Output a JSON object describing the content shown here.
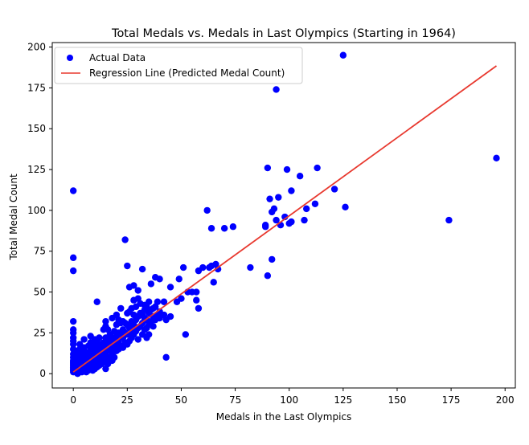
{
  "chart_data": {
    "type": "scatter",
    "title": "Total Medals vs. Medals in Last Olympics (Starting in 1964)",
    "xlabel": "Medals in the Last Olympics",
    "ylabel": "Total Medal Count",
    "xlim": [
      -9.75,
      204.75
    ],
    "ylim": [
      -8.75,
      202.75
    ],
    "xticks": [
      0,
      25,
      50,
      75,
      100,
      125,
      150,
      175,
      200
    ],
    "yticks": [
      0,
      25,
      50,
      75,
      100,
      125,
      150,
      175,
      200
    ],
    "grid": false,
    "legend_position": "upper-left",
    "legend": [
      {
        "label": "Actual Data",
        "kind": "marker",
        "color": "#0000ff"
      },
      {
        "label": "Regression Line (Predicted Medal Count)",
        "kind": "line",
        "color": "#e8392f"
      }
    ],
    "series": [
      {
        "name": "Actual Data",
        "type": "scatter",
        "color": "#0000ff",
        "points": [
          [
            0,
            1
          ],
          [
            0,
            2
          ],
          [
            0,
            3
          ],
          [
            0,
            4
          ],
          [
            0,
            5
          ],
          [
            0,
            6
          ],
          [
            0,
            7
          ],
          [
            0,
            8
          ],
          [
            0,
            10
          ],
          [
            0,
            12
          ],
          [
            0,
            15
          ],
          [
            0,
            18
          ],
          [
            0,
            20
          ],
          [
            0,
            22
          ],
          [
            0,
            25
          ],
          [
            0,
            27
          ],
          [
            0,
            32
          ],
          [
            0,
            63
          ],
          [
            0,
            71
          ],
          [
            0,
            112
          ],
          [
            1,
            1
          ],
          [
            1,
            2
          ],
          [
            1,
            3
          ],
          [
            1,
            5
          ],
          [
            1,
            8
          ],
          [
            1,
            10
          ],
          [
            1,
            13
          ],
          [
            2,
            0
          ],
          [
            2,
            2
          ],
          [
            2,
            4
          ],
          [
            2,
            6
          ],
          [
            2,
            9
          ],
          [
            2,
            12
          ],
          [
            2,
            14
          ],
          [
            3,
            1
          ],
          [
            3,
            3
          ],
          [
            3,
            5
          ],
          [
            3,
            7
          ],
          [
            3,
            10
          ],
          [
            3,
            15
          ],
          [
            3,
            18
          ],
          [
            4,
            1
          ],
          [
            4,
            4
          ],
          [
            4,
            6
          ],
          [
            4,
            8
          ],
          [
            4,
            11
          ],
          [
            4,
            14
          ],
          [
            5,
            2
          ],
          [
            5,
            3
          ],
          [
            5,
            5
          ],
          [
            5,
            7
          ],
          [
            5,
            9
          ],
          [
            5,
            12
          ],
          [
            5,
            16
          ],
          [
            5,
            21
          ],
          [
            6,
            1
          ],
          [
            6,
            4
          ],
          [
            6,
            6
          ],
          [
            6,
            8
          ],
          [
            6,
            10
          ],
          [
            6,
            13
          ],
          [
            7,
            2
          ],
          [
            7,
            5
          ],
          [
            7,
            7
          ],
          [
            7,
            9
          ],
          [
            7,
            12
          ],
          [
            7,
            17
          ],
          [
            8,
            3
          ],
          [
            8,
            5
          ],
          [
            8,
            8
          ],
          [
            8,
            11
          ],
          [
            8,
            14
          ],
          [
            8,
            19
          ],
          [
            8,
            23
          ],
          [
            9,
            2
          ],
          [
            9,
            6
          ],
          [
            9,
            9
          ],
          [
            9,
            12
          ],
          [
            9,
            16
          ],
          [
            10,
            3
          ],
          [
            10,
            6
          ],
          [
            10,
            9
          ],
          [
            10,
            11
          ],
          [
            10,
            14
          ],
          [
            10,
            18
          ],
          [
            10,
            21
          ],
          [
            11,
            4
          ],
          [
            11,
            8
          ],
          [
            11,
            44
          ],
          [
            11,
            12
          ],
          [
            11,
            15
          ],
          [
            11,
            20
          ],
          [
            12,
            5
          ],
          [
            12,
            9
          ],
          [
            12,
            13
          ],
          [
            12,
            17
          ],
          [
            12,
            22
          ],
          [
            13,
            6
          ],
          [
            13,
            10
          ],
          [
            13,
            14
          ],
          [
            13,
            18
          ],
          [
            14,
            7
          ],
          [
            14,
            12
          ],
          [
            14,
            16
          ],
          [
            14,
            19
          ],
          [
            14,
            27
          ],
          [
            15,
            3
          ],
          [
            15,
            8
          ],
          [
            15,
            13
          ],
          [
            15,
            18
          ],
          [
            15,
            22
          ],
          [
            15,
            29
          ],
          [
            15,
            32
          ],
          [
            16,
            6
          ],
          [
            16,
            10
          ],
          [
            16,
            15
          ],
          [
            16,
            21
          ],
          [
            16,
            27
          ],
          [
            17,
            9
          ],
          [
            17,
            14
          ],
          [
            17,
            19
          ],
          [
            17,
            24
          ],
          [
            18,
            8
          ],
          [
            18,
            12
          ],
          [
            18,
            17
          ],
          [
            18,
            22
          ],
          [
            18,
            34
          ],
          [
            19,
            10
          ],
          [
            19,
            16
          ],
          [
            19,
            21
          ],
          [
            19,
            26
          ],
          [
            20,
            14
          ],
          [
            20,
            18
          ],
          [
            20,
            23
          ],
          [
            20,
            30
          ],
          [
            20,
            36
          ],
          [
            21,
            15
          ],
          [
            21,
            20
          ],
          [
            21,
            25
          ],
          [
            21,
            33
          ],
          [
            22,
            17
          ],
          [
            22,
            24
          ],
          [
            22,
            31
          ],
          [
            22,
            40
          ],
          [
            23,
            16
          ],
          [
            23,
            22
          ],
          [
            23,
            27
          ],
          [
            23,
            32
          ],
          [
            24,
            19
          ],
          [
            24,
            25
          ],
          [
            24,
            31
          ],
          [
            24,
            82
          ],
          [
            25,
            18
          ],
          [
            25,
            24
          ],
          [
            25,
            30
          ],
          [
            25,
            37
          ],
          [
            25,
            66
          ],
          [
            26,
            20
          ],
          [
            26,
            28
          ],
          [
            26,
            38
          ],
          [
            26,
            53
          ],
          [
            27,
            22
          ],
          [
            27,
            26
          ],
          [
            27,
            32
          ],
          [
            27,
            40
          ],
          [
            28,
            24
          ],
          [
            28,
            30
          ],
          [
            28,
            36
          ],
          [
            28,
            45
          ],
          [
            28,
            54
          ],
          [
            29,
            26
          ],
          [
            29,
            33
          ],
          [
            29,
            41
          ],
          [
            30,
            21
          ],
          [
            30,
            28
          ],
          [
            30,
            35
          ],
          [
            30,
            46
          ],
          [
            30,
            51
          ],
          [
            31,
            29
          ],
          [
            31,
            37
          ],
          [
            31,
            43
          ],
          [
            32,
            24
          ],
          [
            32,
            31
          ],
          [
            32,
            36
          ],
          [
            32,
            64
          ],
          [
            33,
            27
          ],
          [
            33,
            34
          ],
          [
            33,
            39
          ],
          [
            33,
            42
          ],
          [
            34,
            22
          ],
          [
            34,
            28
          ],
          [
            34,
            33
          ],
          [
            34,
            41
          ],
          [
            35,
            24
          ],
          [
            35,
            30
          ],
          [
            35,
            37
          ],
          [
            35,
            44
          ],
          [
            36,
            32
          ],
          [
            36,
            39
          ],
          [
            36,
            55
          ],
          [
            37,
            29
          ],
          [
            37,
            35
          ],
          [
            37,
            40
          ],
          [
            38,
            33
          ],
          [
            38,
            41
          ],
          [
            38,
            59
          ],
          [
            39,
            36
          ],
          [
            39,
            44
          ],
          [
            40,
            34
          ],
          [
            40,
            38
          ],
          [
            40,
            58
          ],
          [
            42,
            36
          ],
          [
            42,
            44
          ],
          [
            43,
            10
          ],
          [
            43,
            33
          ],
          [
            45,
            35
          ],
          [
            45,
            53
          ],
          [
            48,
            44
          ],
          [
            49,
            58
          ],
          [
            50,
            46
          ],
          [
            51,
            65
          ],
          [
            52,
            24
          ],
          [
            53,
            50
          ],
          [
            55,
            50
          ],
          [
            57,
            45
          ],
          [
            57,
            50
          ],
          [
            58,
            40
          ],
          [
            58,
            63
          ],
          [
            60,
            65
          ],
          [
            62,
            100
          ],
          [
            63,
            65
          ],
          [
            64,
            89
          ],
          [
            64,
            66
          ],
          [
            65,
            56
          ],
          [
            66,
            67
          ],
          [
            67,
            64
          ],
          [
            70,
            89
          ],
          [
            74,
            90
          ],
          [
            82,
            65
          ],
          [
            89,
            90
          ],
          [
            89,
            91
          ],
          [
            90,
            60
          ],
          [
            90,
            126
          ],
          [
            91,
            107
          ],
          [
            92,
            70
          ],
          [
            92,
            99
          ],
          [
            93,
            101
          ],
          [
            94,
            94
          ],
          [
            94,
            174
          ],
          [
            95,
            108
          ],
          [
            96,
            91
          ],
          [
            98,
            96
          ],
          [
            99,
            125
          ],
          [
            100,
            92
          ],
          [
            101,
            93
          ],
          [
            101,
            112
          ],
          [
            105,
            121
          ],
          [
            107,
            94
          ],
          [
            108,
            101
          ],
          [
            112,
            104
          ],
          [
            113,
            126
          ],
          [
            121,
            113
          ],
          [
            125,
            195
          ],
          [
            126,
            102
          ],
          [
            174,
            94
          ],
          [
            196,
            132
          ]
        ]
      },
      {
        "name": "Regression Line (Predicted Medal Count)",
        "type": "line",
        "color": "#e8392f",
        "points": [
          [
            0,
            1
          ],
          [
            196,
            188.5
          ]
        ]
      }
    ]
  }
}
